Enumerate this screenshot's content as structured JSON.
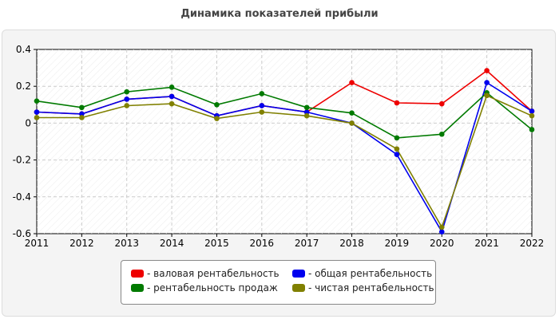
{
  "chart_data": {
    "type": "line",
    "title": "Динамика показателей прибыли",
    "xlabel": "",
    "ylabel": "",
    "categories": [
      "2011",
      "2012",
      "2013",
      "2014",
      "2015",
      "2016",
      "2017",
      "2018",
      "2019",
      "2020",
      "2021",
      "2022"
    ],
    "ylim": [
      -0.6,
      0.4
    ],
    "yticks": [
      0.4,
      0.2,
      0,
      -0.2,
      -0.4,
      -0.6
    ],
    "ytick_labels": [
      "0.4",
      "0.2",
      "0",
      "-0.2",
      "-0.4",
      "-0.6"
    ],
    "grid": true,
    "legend_position": "bottom",
    "series": [
      {
        "name": "- валовая рентабельность",
        "color": "#ee0000",
        "values": [
          0.06,
          0.05,
          0.13,
          0.145,
          0.04,
          0.095,
          0.06,
          0.22,
          0.11,
          0.105,
          0.285,
          0.065
        ]
      },
      {
        "name": "- общая рентабельность",
        "color": "#0000ee",
        "values": [
          0.06,
          0.05,
          0.13,
          0.145,
          0.04,
          0.095,
          0.06,
          0.0,
          -0.17,
          -0.59,
          0.22,
          0.065
        ]
      },
      {
        "name": "- рентабельность продаж",
        "color": "#007a00",
        "values": [
          0.12,
          0.085,
          0.17,
          0.195,
          0.1,
          0.16,
          0.085,
          0.055,
          -0.08,
          -0.06,
          0.165,
          -0.035
        ]
      },
      {
        "name": "- чистая рентабельность",
        "color": "#808000",
        "values": [
          0.03,
          0.03,
          0.095,
          0.105,
          0.025,
          0.06,
          0.04,
          0.0,
          -0.14,
          -0.565,
          0.15,
          0.04
        ]
      }
    ]
  }
}
